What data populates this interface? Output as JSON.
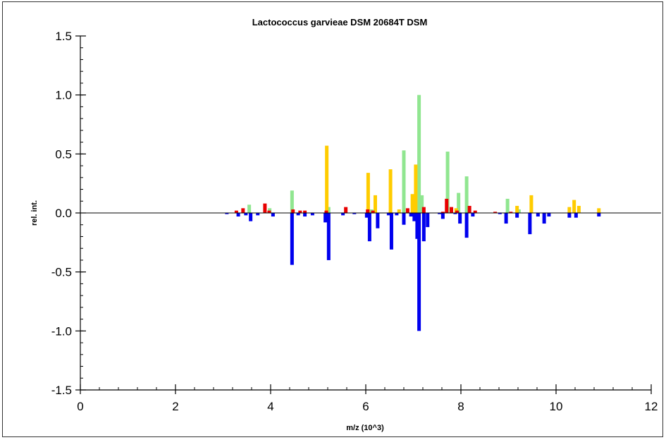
{
  "chart_data": {
    "type": "bar",
    "title": "Lactococcus garvieae DSM 20684T DSM",
    "xlabel": "m/z (10^3)",
    "ylabel": "rel. int.",
    "xlim": [
      0,
      12
    ],
    "ylim": [
      -1.5,
      1.5
    ],
    "xticks": [
      0,
      2,
      4,
      6,
      8,
      10,
      12
    ],
    "xtick_labels": [
      "0",
      "2",
      "4",
      "6",
      "8",
      "10",
      "12"
    ],
    "yticks": [
      -1.5,
      -1.0,
      -0.5,
      0.0,
      0.5,
      1.0,
      1.5
    ],
    "ytick_labels": [
      "-1.5",
      "-1.0",
      "-0.5",
      "0.0",
      "0.5",
      "1.0",
      "1.5"
    ],
    "grid": false,
    "series": [
      {
        "color": "#90e690",
        "points": [
          [
            3.55,
            0.07
          ],
          [
            3.98,
            0.04
          ],
          [
            4.45,
            0.19
          ],
          [
            5.22,
            0.05
          ],
          [
            6.12,
            0.03
          ],
          [
            6.8,
            0.53
          ],
          [
            7.05,
            0.06
          ],
          [
            7.12,
            1.0
          ],
          [
            7.18,
            0.15
          ],
          [
            7.72,
            0.52
          ],
          [
            7.95,
            0.17
          ],
          [
            8.12,
            0.31
          ],
          [
            8.98,
            0.12
          ],
          [
            9.22,
            0.03
          ]
        ]
      },
      {
        "color": "#ffcc00",
        "points": [
          [
            5.18,
            0.57
          ],
          [
            6.05,
            0.34
          ],
          [
            6.2,
            0.15
          ],
          [
            6.52,
            0.37
          ],
          [
            6.7,
            0.03
          ],
          [
            6.98,
            0.16
          ],
          [
            7.05,
            0.41
          ],
          [
            7.9,
            0.04
          ],
          [
            9.18,
            0.06
          ],
          [
            9.48,
            0.15
          ],
          [
            10.28,
            0.05
          ],
          [
            10.38,
            0.11
          ],
          [
            10.48,
            0.06
          ],
          [
            10.9,
            0.04
          ]
        ]
      },
      {
        "color": "#e80000",
        "points": [
          [
            3.28,
            0.02
          ],
          [
            3.42,
            0.04
          ],
          [
            3.88,
            0.08
          ],
          [
            3.97,
            0.02
          ],
          [
            4.47,
            0.03
          ],
          [
            4.62,
            0.02
          ],
          [
            4.72,
            0.02
          ],
          [
            5.17,
            0.02
          ],
          [
            5.58,
            0.05
          ],
          [
            6.04,
            0.03
          ],
          [
            6.15,
            0.02
          ],
          [
            6.88,
            0.04
          ],
          [
            7.22,
            0.05
          ],
          [
            7.62,
            0.01
          ],
          [
            7.7,
            0.12
          ],
          [
            7.8,
            0.05
          ],
          [
            7.92,
            0.02
          ],
          [
            8.18,
            0.06
          ],
          [
            8.3,
            0.02
          ],
          [
            8.72,
            0.01
          ],
          [
            9.05,
            0.01
          ]
        ]
      },
      {
        "color": "#0000ee",
        "points": [
          [
            3.08,
            -0.01
          ],
          [
            3.32,
            -0.03
          ],
          [
            3.48,
            -0.02
          ],
          [
            3.58,
            -0.07
          ],
          [
            3.73,
            -0.02
          ],
          [
            4.05,
            -0.03
          ],
          [
            4.45,
            -0.44
          ],
          [
            4.58,
            -0.02
          ],
          [
            4.72,
            -0.03
          ],
          [
            4.88,
            -0.02
          ],
          [
            5.15,
            -0.08
          ],
          [
            5.22,
            -0.4
          ],
          [
            5.52,
            -0.02
          ],
          [
            5.76,
            -0.01
          ],
          [
            6.02,
            -0.04
          ],
          [
            6.08,
            -0.24
          ],
          [
            6.25,
            -0.13
          ],
          [
            6.48,
            -0.02
          ],
          [
            6.54,
            -0.31
          ],
          [
            6.65,
            -0.02
          ],
          [
            6.8,
            -0.1
          ],
          [
            6.95,
            -0.03
          ],
          [
            7.02,
            -0.07
          ],
          [
            7.08,
            -0.22
          ],
          [
            7.12,
            -1.0
          ],
          [
            7.22,
            -0.24
          ],
          [
            7.3,
            -0.12
          ],
          [
            7.55,
            -0.01
          ],
          [
            7.62,
            -0.05
          ],
          [
            7.88,
            -0.01
          ],
          [
            7.98,
            -0.09
          ],
          [
            8.12,
            -0.21
          ],
          [
            8.25,
            -0.03
          ],
          [
            8.82,
            -0.01
          ],
          [
            8.95,
            -0.09
          ],
          [
            9.18,
            -0.04
          ],
          [
            9.45,
            -0.18
          ],
          [
            9.62,
            -0.03
          ],
          [
            9.75,
            -0.09
          ],
          [
            9.85,
            -0.03
          ],
          [
            10.28,
            -0.04
          ],
          [
            10.42,
            -0.04
          ],
          [
            10.9,
            -0.03
          ]
        ]
      }
    ]
  }
}
